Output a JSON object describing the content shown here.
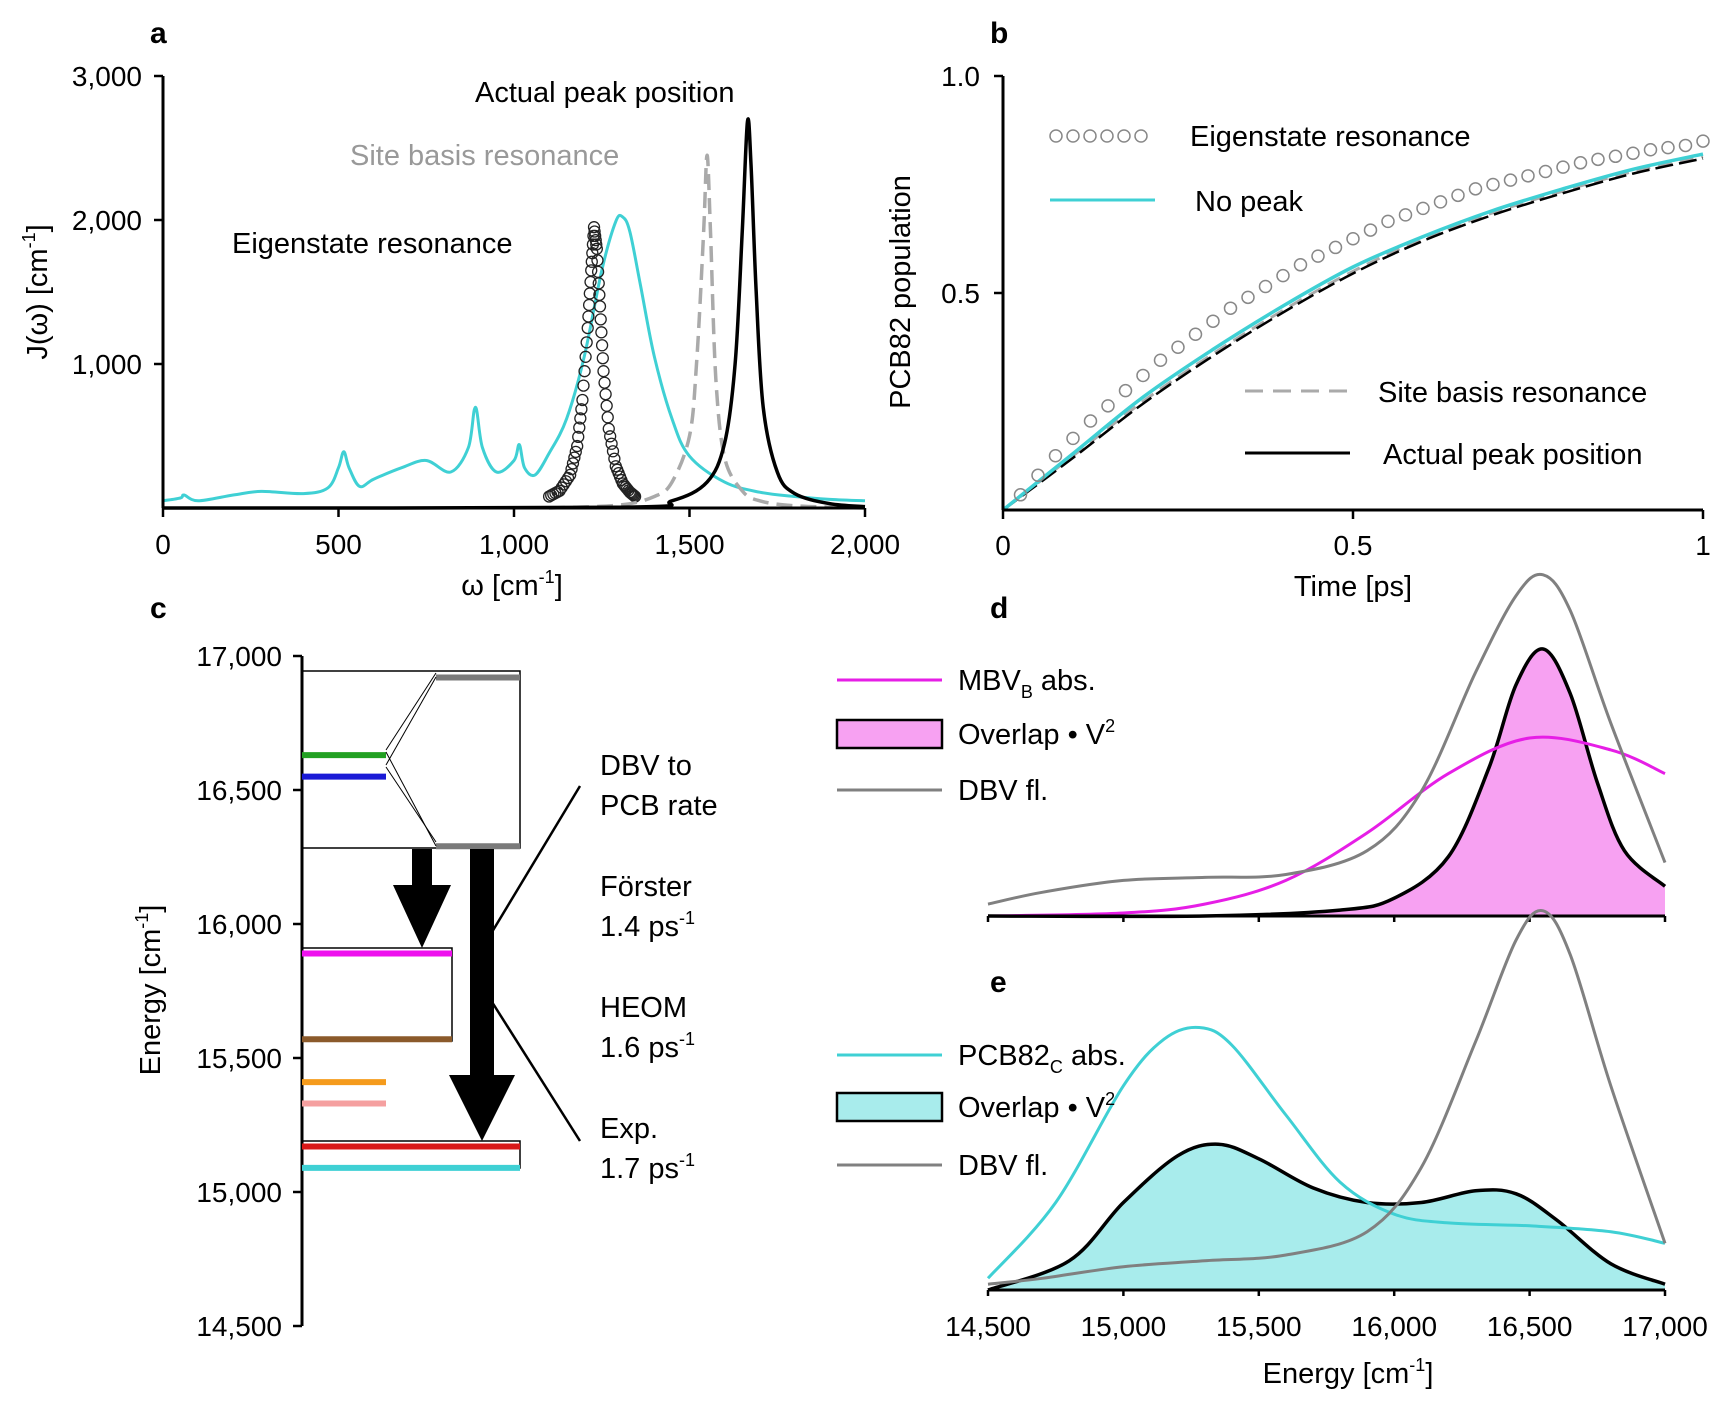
{
  "colors": {
    "cyan": "#3fd0d4",
    "black": "#000000",
    "gray": "#999999",
    "darkgray": "#808080",
    "magenta": "#e61ee6",
    "pink_fill": "#f7a1f2",
    "cyan_fill": "#a8ecec",
    "green": "#22a022",
    "blue": "#1a1ad6",
    "gray_level": "#7a7a7a",
    "brown": "#8b5a2b",
    "orange": "#f59b1c",
    "pink": "#f5a0a0",
    "red": "#d81818",
    "teal": "#3fd0d4",
    "magenta_level": "#ee10ee"
  },
  "panels": {
    "a": {
      "letter": "a",
      "xlabel_main": "ω [cm",
      "xlabel_sup": "-1",
      "xlabel_end": "]",
      "ylabel_main": "J(ω) [cm",
      "ylabel_sup": "-1",
      "ylabel_end": "]"
    },
    "b": {
      "letter": "b",
      "xlabel": "Time [ps]",
      "ylabel": "PCB82 population"
    },
    "c": {
      "letter": "c",
      "ylabel_main": "Energy [cm",
      "ylabel_sup": "-1",
      "ylabel_end": "]"
    },
    "d": {
      "letter": "d"
    },
    "e": {
      "letter": "e",
      "xlabel_main": "Energy [cm",
      "xlabel_sup": "-1",
      "xlabel_end": "]"
    }
  },
  "annotations_a": {
    "actual": "Actual peak position",
    "site": "Site basis resonance",
    "eigen": "Eigenstate resonance"
  },
  "legend_b": {
    "eigen": "Eigenstate resonance",
    "nopeak": "No peak",
    "site": "Site basis resonance",
    "actual": "Actual peak position"
  },
  "rates_c": {
    "title1": "DBV to",
    "title2": "PCB rate",
    "forster": "Förster",
    "forster_rate": "1.4 ps",
    "heom": "HEOM",
    "heom_rate": "1.6 ps",
    "exp": "Exp.",
    "exp_rate": "1.7 ps",
    "rate_sup": "-1"
  },
  "legend_d": {
    "mbv_main": "MBV",
    "mbv_sub": "B",
    "mbv_end": " abs.",
    "overlap": "Overlap • V",
    "overlap_sup": "2",
    "dbv": "DBV fl."
  },
  "legend_e": {
    "pcb_main": "PCB82",
    "pcb_sub": "C",
    "pcb_end": " abs.",
    "overlap": "Overlap • V",
    "overlap_sup": "2",
    "dbv": "DBV fl."
  },
  "chart_data": [
    {
      "panel": "a",
      "type": "line",
      "xlabel": "ω [cm-1]",
      "ylabel": "J(ω) [cm-1]",
      "xlim": [
        0,
        2000
      ],
      "ylim": [
        0,
        3000
      ],
      "xticks": [
        "0",
        "500",
        "1,000",
        "1,500",
        "2,000"
      ],
      "yticks": [
        "1,000",
        "2,000",
        "3,000"
      ],
      "series": [
        {
          "name": "No peak",
          "style": "cyan solid",
          "x": [
            0,
            50,
            60,
            100,
            200,
            280,
            400,
            470,
            500,
            515,
            530,
            560,
            600,
            680,
            750,
            820,
            870,
            890,
            910,
            950,
            1000,
            1015,
            1030,
            1060,
            1100,
            1150,
            1200,
            1250,
            1290,
            1310,
            1330,
            1360,
            1400,
            1450,
            1500,
            1600,
            1700,
            1800,
            1900,
            2000
          ],
          "values": [
            50,
            70,
            90,
            50,
            90,
            115,
            100,
            140,
            280,
            390,
            280,
            150,
            200,
            280,
            330,
            250,
            420,
            700,
            420,
            250,
            330,
            440,
            280,
            230,
            380,
            620,
            1050,
            1650,
            1990,
            2020,
            1920,
            1550,
            1050,
            620,
            360,
            180,
            110,
            80,
            60,
            50
          ]
        },
        {
          "name": "Eigenstate resonance",
          "style": "open circles",
          "x": [
            1100,
            1130,
            1160,
            1180,
            1195,
            1210,
            1220,
            1228,
            1236,
            1245,
            1255,
            1270,
            1290,
            1310,
            1330,
            1345
          ],
          "values": [
            80,
            120,
            230,
            430,
            750,
            1250,
            1650,
            1950,
            1800,
            1400,
            950,
            550,
            290,
            170,
            110,
            80
          ]
        },
        {
          "name": "Site basis resonance",
          "style": "gray dashed",
          "x": [
            1100,
            1300,
            1400,
            1450,
            1500,
            1520,
            1540,
            1550,
            1560,
            1575,
            1600,
            1650,
            1700,
            1800,
            2000
          ],
          "values": [
            0,
            20,
            80,
            180,
            500,
            1000,
            1900,
            2450,
            1900,
            900,
            350,
            120,
            50,
            15,
            0
          ]
        },
        {
          "name": "Actual peak position",
          "style": "black solid",
          "x": [
            0,
            1300,
            1450,
            1550,
            1600,
            1630,
            1650,
            1665,
            1675,
            1690,
            1710,
            1750,
            1800,
            1900,
            2000
          ],
          "values": [
            0,
            5,
            50,
            180,
            450,
            1000,
            1900,
            2680,
            2400,
            1500,
            700,
            250,
            100,
            30,
            10
          ]
        }
      ]
    },
    {
      "panel": "b",
      "type": "line",
      "xlabel": "Time [ps]",
      "ylabel": "PCB82 population",
      "xlim": [
        0,
        1
      ],
      "ylim": [
        0,
        1
      ],
      "xticks": [
        "0",
        "0.5",
        "1"
      ],
      "yticks": [
        "0.5",
        "1.0"
      ],
      "series": [
        {
          "name": "Eigenstate resonance",
          "style": "open circles",
          "x": [
            0.025,
            0.05,
            0.075,
            0.1,
            0.125,
            0.15,
            0.175,
            0.2,
            0.225,
            0.25,
            0.275,
            0.3,
            0.325,
            0.35,
            0.375,
            0.4,
            0.425,
            0.45,
            0.475,
            0.5,
            0.525,
            0.55,
            0.575,
            0.6,
            0.625,
            0.65,
            0.675,
            0.7,
            0.725,
            0.75,
            0.775,
            0.8,
            0.825,
            0.85,
            0.875,
            0.9,
            0.925,
            0.95,
            0.975,
            1.0
          ],
          "values": [
            0.035,
            0.08,
            0.125,
            0.165,
            0.205,
            0.24,
            0.275,
            0.31,
            0.345,
            0.375,
            0.405,
            0.435,
            0.465,
            0.49,
            0.515,
            0.54,
            0.565,
            0.585,
            0.605,
            0.625,
            0.645,
            0.665,
            0.68,
            0.695,
            0.71,
            0.725,
            0.74,
            0.75,
            0.76,
            0.77,
            0.78,
            0.79,
            0.8,
            0.808,
            0.815,
            0.822,
            0.83,
            0.835,
            0.84,
            0.85
          ]
        },
        {
          "name": "No peak",
          "style": "cyan solid",
          "x": [
            0,
            0.1,
            0.2,
            0.3,
            0.4,
            0.5,
            0.6,
            0.7,
            0.8,
            0.9,
            1.0
          ],
          "values": [
            0,
            0.13,
            0.26,
            0.37,
            0.47,
            0.56,
            0.63,
            0.69,
            0.74,
            0.785,
            0.82
          ]
        },
        {
          "name": "Site basis resonance",
          "style": "gray dashed",
          "x": [
            0,
            0.1,
            0.2,
            0.3,
            0.4,
            0.5,
            0.6,
            0.7,
            0.8,
            0.9,
            1.0
          ],
          "values": [
            0,
            0.125,
            0.25,
            0.36,
            0.46,
            0.55,
            0.625,
            0.685,
            0.735,
            0.78,
            0.815
          ]
        },
        {
          "name": "Actual peak position",
          "style": "black solid",
          "x": [
            0,
            0.1,
            0.2,
            0.3,
            0.4,
            0.5,
            0.6,
            0.7,
            0.8,
            0.9,
            1.0
          ],
          "values": [
            0,
            0.12,
            0.245,
            0.355,
            0.455,
            0.545,
            0.62,
            0.68,
            0.73,
            0.775,
            0.81
          ]
        }
      ]
    },
    {
      "panel": "c",
      "type": "diagram",
      "ylabel": "Energy [cm-1]",
      "ylim": [
        14500,
        17000
      ],
      "yticks": [
        "14,500",
        "15,000",
        "15,500",
        "16,000",
        "16,500",
        "17,000"
      ],
      "levels": [
        {
          "energy": 16630,
          "color": "green"
        },
        {
          "energy": 16550,
          "color": "blue"
        },
        {
          "energy": 16920,
          "color": "gray_level"
        },
        {
          "energy": 16290,
          "color": "gray_level"
        },
        {
          "energy": 15890,
          "color": "magenta_level"
        },
        {
          "energy": 15570,
          "color": "brown"
        },
        {
          "energy": 15410,
          "color": "orange"
        },
        {
          "energy": 15330,
          "color": "pink"
        },
        {
          "energy": 15170,
          "color": "red"
        },
        {
          "energy": 15090,
          "color": "teal"
        }
      ]
    },
    {
      "panel": "d",
      "type": "area",
      "xlim": [
        14500,
        17000
      ],
      "series": [
        {
          "name": "MBV_B abs.",
          "style": "magenta line",
          "x": [
            14500,
            15000,
            15300,
            15600,
            15900,
            16200,
            16500,
            16800,
            17000
          ],
          "values": [
            0.0,
            0.01,
            0.04,
            0.12,
            0.28,
            0.48,
            0.6,
            0.56,
            0.48
          ]
        },
        {
          "name": "Overlap • V2",
          "style": "pink fill black outline",
          "x": [
            14500,
            15300,
            15800,
            16000,
            16200,
            16350,
            16450,
            16550,
            16650,
            16750,
            16850,
            17000
          ],
          "values": [
            0.0,
            0.0,
            0.02,
            0.06,
            0.2,
            0.5,
            0.78,
            0.9,
            0.75,
            0.45,
            0.22,
            0.1
          ]
        },
        {
          "name": "DBV fl.",
          "style": "gray line",
          "x": [
            14500,
            14700,
            15000,
            15300,
            15600,
            15900,
            16100,
            16300,
            16450,
            16550,
            16650,
            16800,
            17000
          ],
          "values": [
            0.04,
            0.08,
            0.12,
            0.13,
            0.14,
            0.22,
            0.42,
            0.82,
            1.08,
            1.15,
            1.03,
            0.65,
            0.18
          ]
        }
      ]
    },
    {
      "panel": "e",
      "type": "area",
      "xlabel": "Energy [cm-1]",
      "xlim": [
        14500,
        17000
      ],
      "xticks": [
        "14,500",
        "15,000",
        "15,500",
        "16,000",
        "16,500",
        "17,000"
      ],
      "series": [
        {
          "name": "PCB82_C abs.",
          "style": "cyan line",
          "x": [
            14500,
            14750,
            15000,
            15150,
            15280,
            15400,
            15600,
            15800,
            16000,
            16200,
            16500,
            16800,
            17000
          ],
          "values": [
            0.04,
            0.3,
            0.7,
            0.86,
            0.9,
            0.84,
            0.6,
            0.37,
            0.26,
            0.23,
            0.22,
            0.2,
            0.16
          ]
        },
        {
          "name": "Overlap • V2",
          "style": "cyan fill black outline",
          "x": [
            14500,
            14800,
            15000,
            15200,
            15350,
            15500,
            15700,
            15900,
            16100,
            16300,
            16450,
            16600,
            16800,
            17000
          ],
          "values": [
            0.0,
            0.1,
            0.3,
            0.46,
            0.5,
            0.45,
            0.35,
            0.3,
            0.3,
            0.34,
            0.33,
            0.24,
            0.09,
            0.02
          ]
        },
        {
          "name": "DBV fl.",
          "style": "gray line",
          "x": [
            14500,
            14700,
            15000,
            15300,
            15600,
            15900,
            16100,
            16300,
            16450,
            16550,
            16650,
            16800,
            17000
          ],
          "values": [
            0.02,
            0.04,
            0.08,
            0.1,
            0.12,
            0.2,
            0.42,
            0.85,
            1.2,
            1.3,
            1.15,
            0.7,
            0.16
          ]
        }
      ]
    }
  ]
}
